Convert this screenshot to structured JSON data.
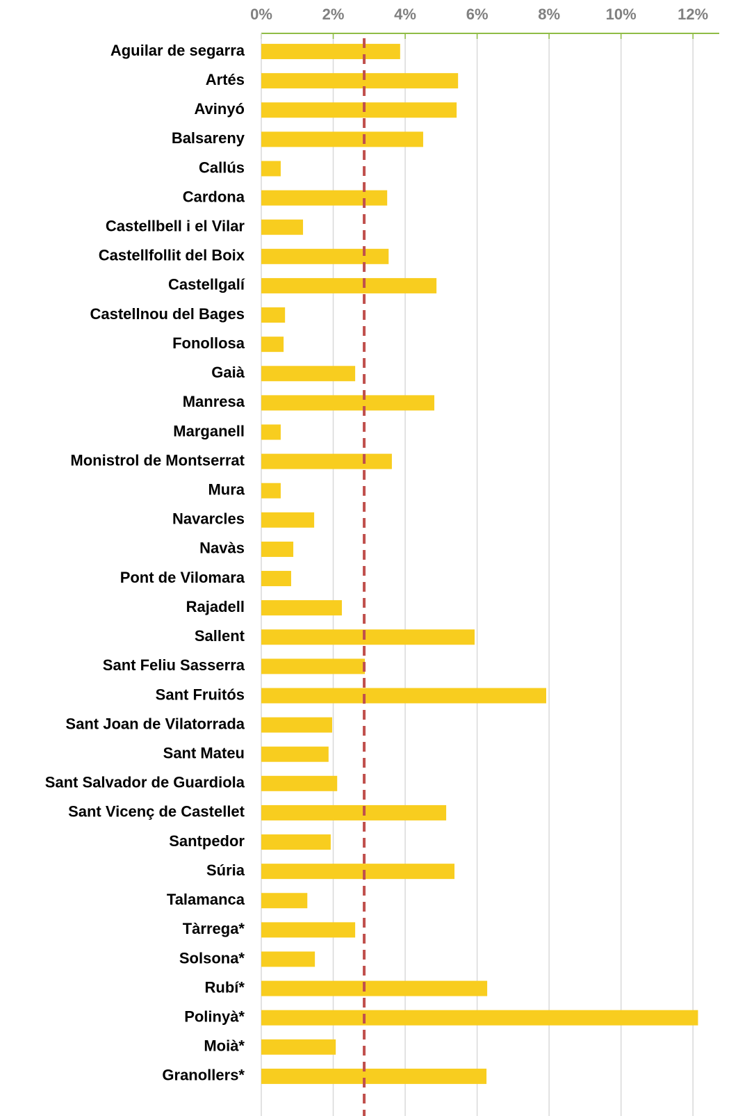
{
  "chart_data": {
    "type": "bar",
    "orientation": "horizontal",
    "categories": [
      "Aguilar de segarra",
      "Artés",
      "Avinyó",
      "Balsareny",
      "Callús",
      "Cardona",
      "Castellbell i el Vilar",
      "Castellfollit del Boix",
      "Castellgalí",
      "Castellnou del Bages",
      "Fonollosa",
      "Gaià",
      "Manresa",
      "Marganell",
      "Monistrol de Montserrat",
      "Mura",
      "Navarcles",
      "Navàs",
      "Pont de Vilomara",
      "Rajadell",
      "Sallent",
      "Sant Feliu Sasserra",
      "Sant Fruitós",
      "Sant Joan de Vilatorrada",
      "Sant Mateu",
      "Sant Salvador de Guardiola",
      "Sant Vicenç de Castellet",
      "Santpedor",
      "Súria",
      "Talamanca",
      "Tàrrega*",
      "Solsona*",
      "Rubí*",
      "Polinyà*",
      "Moià*",
      "Granollers*"
    ],
    "values": [
      3.86,
      5.47,
      5.43,
      4.5,
      0.54,
      3.5,
      1.16,
      3.54,
      4.87,
      0.66,
      0.62,
      2.61,
      4.81,
      0.54,
      3.63,
      0.54,
      1.47,
      0.89,
      0.83,
      2.24,
      5.93,
      2.88,
      7.92,
      1.97,
      1.87,
      2.11,
      5.14,
      1.93,
      5.37,
      1.28,
      2.61,
      1.49,
      6.28,
      12.14,
      2.07,
      6.26
    ],
    "color": "#f8cd1f",
    "reference_line": 2.86,
    "reference_color": "#c0504d",
    "xlim": [
      0,
      12.73
    ],
    "xticks": [
      {
        "value": 0,
        "label": "0%"
      },
      {
        "value": 2,
        "label": "2%"
      },
      {
        "value": 4,
        "label": "4%"
      },
      {
        "value": 6,
        "label": "6%"
      },
      {
        "value": 8,
        "label": "8%"
      },
      {
        "value": 10,
        "label": "10%"
      },
      {
        "value": 12,
        "label": "12%"
      }
    ],
    "grid": true,
    "axis_color": "#8fbc45"
  }
}
